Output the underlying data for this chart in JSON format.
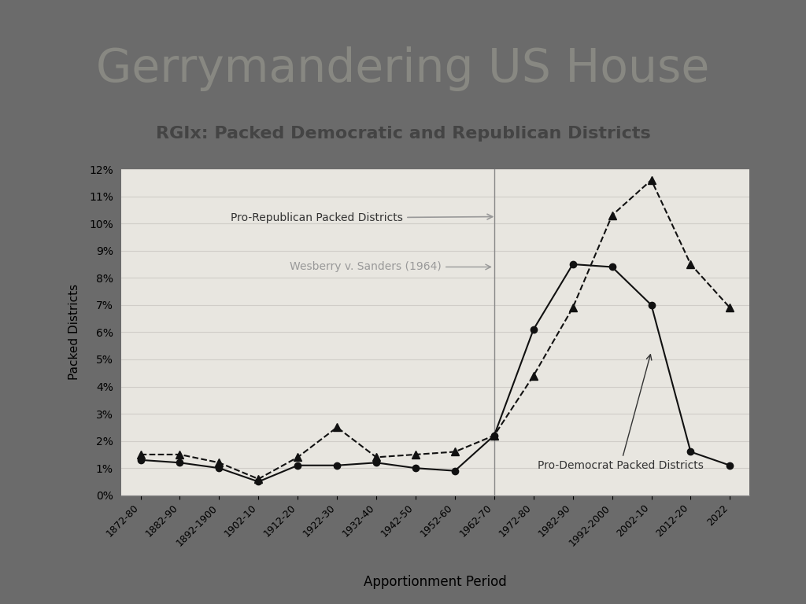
{
  "title": "Gerrymandering US House",
  "subtitle": "RGIx: Packed Democratic and Republican Districts",
  "xlabel": "Apportionment Period",
  "ylabel": "Packed Districts",
  "bg_outer": "#6b6b6b",
  "bg_slide": "#e8e6e2",
  "bg_plot_panel": "#f5f4f2",
  "bg_plot": "#e8e6e0",
  "title_color": "#888882",
  "subtitle_color": "#444444",
  "x_labels": [
    "1872-80",
    "1882-90",
    "1892-1900",
    "1902-10",
    "1912-20",
    "1922-30",
    "1932-40",
    "1942-50",
    "1952-60",
    "1962-70",
    "1972-80",
    "1982-90",
    "1992-2000",
    "2002-10",
    "2012-20",
    "2022"
  ],
  "x_positions": [
    0,
    1,
    2,
    3,
    4,
    5,
    6,
    7,
    8,
    9,
    10,
    11,
    12,
    13,
    14,
    15
  ],
  "dem_y": [
    1.3,
    1.2,
    1.0,
    0.5,
    1.1,
    1.1,
    1.2,
    1.0,
    0.9,
    2.2,
    6.1,
    8.5,
    8.4,
    7.0,
    1.6,
    1.1
  ],
  "rep_y": [
    1.5,
    1.5,
    1.2,
    0.6,
    1.4,
    2.5,
    1.4,
    1.5,
    1.6,
    2.2,
    4.4,
    6.9,
    10.3,
    11.6,
    8.5,
    6.9
  ],
  "ylim": [
    0,
    12
  ],
  "yticks": [
    0,
    1,
    2,
    3,
    4,
    5,
    6,
    7,
    8,
    9,
    10,
    11,
    12
  ],
  "vertical_line_x": 9,
  "wesberry_text": "Wesberry v. Sanders (1964)",
  "pro_rep_text": "Pro-Republican Packed Districts",
  "pro_dem_text": "Pro-Democrat Packed Districts",
  "line_color": "#111111",
  "annotation_gray": "#999999",
  "annotation_dark": "#333333",
  "grid_color": "#d0cdc8",
  "panel_border": "#cccccc"
}
